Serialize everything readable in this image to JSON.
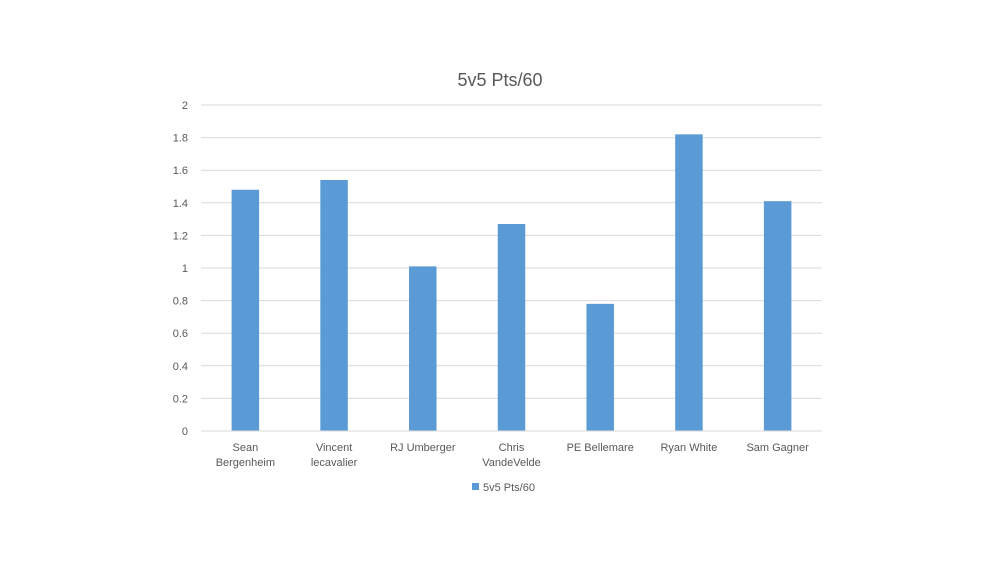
{
  "chart_data": {
    "type": "bar",
    "title": "5v5 Pts/60",
    "xlabel": "",
    "ylabel": "",
    "categories": [
      [
        "Sean",
        "Bergenheim"
      ],
      [
        "Vincent",
        "lecavalier"
      ],
      [
        "RJ Umberger"
      ],
      [
        "Chris",
        "VandeVelde"
      ],
      [
        "PE Bellemare"
      ],
      [
        "Ryan White"
      ],
      [
        "Sam Gagner"
      ]
    ],
    "series": [
      {
        "name": "5v5 Pts/60",
        "values": [
          1.48,
          1.54,
          1.01,
          1.27,
          0.78,
          1.82,
          1.41
        ],
        "color": "#5B9BD5"
      }
    ],
    "ylim": [
      0,
      2
    ],
    "yticks": [
      "0",
      "0.2",
      "0.4",
      "0.6",
      "0.8",
      "1",
      "1.2",
      "1.4",
      "1.6",
      "1.8",
      "2"
    ],
    "grid": true,
    "legend_position": "bottom"
  }
}
